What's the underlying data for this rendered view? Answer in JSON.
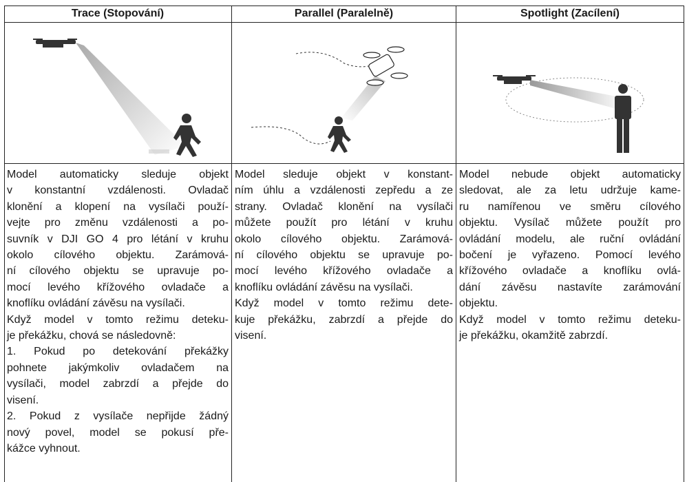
{
  "table": {
    "headers": [
      "Trace (Stopování)",
      "Parallel (Paralelně)",
      "Spotlight (Zacílení)"
    ],
    "cells": [
      [
        [
          "Model automaticky sleduje objekt",
          "v konstantní vzdálenosti. Ovladač",
          "klonění a klopení na vysílači použí-",
          "vejte pro změnu vzdálenosti a po-",
          "suvník v DJI GO 4 pro létání v kruhu",
          "okolo cílového objektu. Zarámová-",
          "ní cílového objektu se upravuje po-",
          "mocí levého křížového ovladače a",
          "knoflíku ovládání závěsu na vysílači."
        ],
        [
          "Když model v tomto režimu deteku-",
          "je překážku, chová se následovně:"
        ],
        [
          "1. Pokud po detekování překážky",
          "pohnete jakýmkoliv ovladačem na",
          "vysílači, model zabrzdí a přejde do",
          "visení."
        ],
        [
          "2. Pokud z vysílače nepřijde žádný",
          "nový povel, model se pokusí pře-",
          "kážce vyhnout."
        ]
      ],
      [
        [
          "Model sleduje objekt v konstant-",
          "ním úhlu a vzdálenosti zepředu a ze",
          "strany. Ovladač klonění na vysílači",
          "můžete použít pro létání v kruhu",
          "okolo cílového objektu. Zarámová-",
          "ní cílového objektu se upravuje po-",
          "mocí levého křížového ovladače a",
          "knoflíku ovládání závěsu na vysílači."
        ],
        [
          "Když model v tomto režimu dete-",
          "kuje překážku, zabrzdí a přejde do",
          "visení."
        ]
      ],
      [
        [
          "Model nebude objekt automaticky",
          "sledovat, ale za letu udržuje kame-",
          "ru namířenou ve směru cílového",
          "objektu. Vysílač můžete použít pro",
          "ovládání modelu, ale ruční ovládání",
          "bočení je vyřazeno. Pomocí levého",
          "křížového ovladače a knoflíku ovlá-",
          "dání závěsu nastavíte zarámování",
          "objektu."
        ],
        [
          "Když model v tomto režimu deteku-",
          "je překážku, okamžitě zabrzdí."
        ]
      ]
    ]
  }
}
